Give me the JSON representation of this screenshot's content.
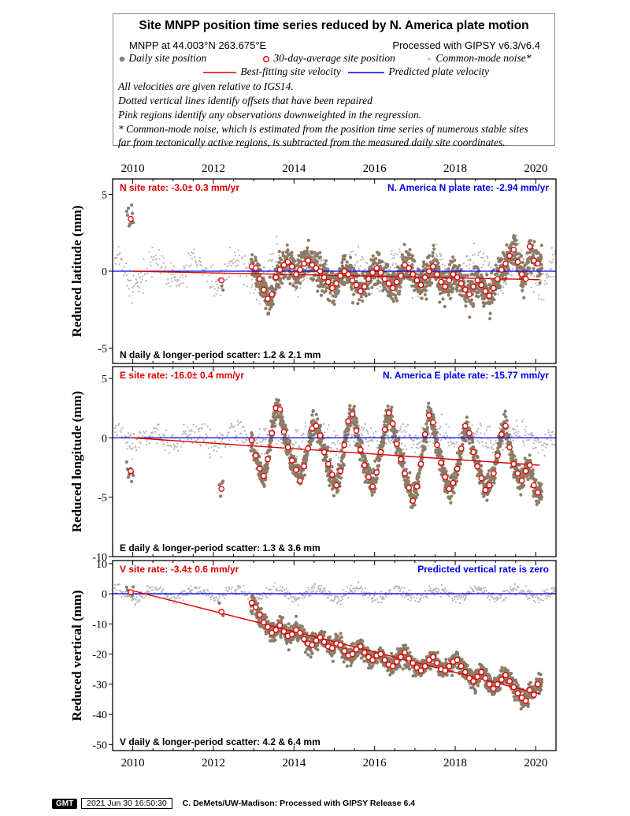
{
  "header": {
    "title": "Site MNPP position time series reduced by N. America plate motion",
    "site_location": "MNPP at 44.003°N 263.675°E",
    "processing": "Processed with GIPSY v6.3/v6.4",
    "legend": {
      "daily": "Daily site position",
      "avg30": "30-day-average site position",
      "common_mode": "Common-mode noise*",
      "best_fit": "Best-fitting site velocity",
      "predicted": "Predicted plate velocity"
    },
    "notes": [
      "All velocities are given relative to IGS14.",
      "Dotted vertical lines identify offsets that have been repaired",
      "Pink regions identify any observations downweighted in the regression.",
      "* Common-mode noise, which is estimated from the position time series of numerous stable sites",
      "far from tectonically active regions, is subtracted from the measured daily site coordinates."
    ]
  },
  "colors": {
    "daily": "#8c7b67",
    "common_mode": "#b4b4b4",
    "avg30_stroke": "#e00000",
    "best_fit": "#e00000",
    "predicted": "#0000ee",
    "site_rate_text": "#e00000",
    "plate_rate_text": "#0000ee"
  },
  "chart_data": [
    {
      "type": "scatter",
      "component": "N",
      "ylabel": "Reduced latitude (mm)",
      "xlim": [
        2009.5,
        2020.5
      ],
      "ylim": [
        -6,
        6
      ],
      "yticks": [
        5,
        0,
        -5
      ],
      "xticks": [
        2010,
        2012,
        2014,
        2016,
        2018,
        2020
      ],
      "site_rate": "N site rate:  -3.0± 0.3 mm/yr",
      "plate_rate": "N. America N plate rate: -2.94 mm/yr",
      "scatter": "N daily & longer-period scatter:   1.2 &   2.1 mm",
      "best_fit_line": {
        "x": [
          2010.0,
          2020.1
        ],
        "y": [
          0.0,
          -0.55
        ]
      },
      "predicted_line": {
        "x": [
          2009.5,
          2020.5
        ],
        "y": [
          0.0,
          0.0
        ]
      },
      "averages_30day": {
        "x": [
          2009.95,
          2012.2,
          2012.95,
          2013.05,
          2013.15,
          2013.25,
          2013.35,
          2013.45,
          2013.55,
          2013.65,
          2013.75,
          2013.85,
          2013.95,
          2014.05,
          2014.15,
          2014.25,
          2014.35,
          2014.45,
          2014.55,
          2014.65,
          2014.75,
          2014.85,
          2014.95,
          2015.05,
          2015.15,
          2015.25,
          2015.35,
          2015.45,
          2015.55,
          2015.65,
          2015.75,
          2015.85,
          2015.95,
          2016.05,
          2016.15,
          2016.25,
          2016.35,
          2016.45,
          2016.55,
          2016.65,
          2016.75,
          2016.85,
          2016.95,
          2017.05,
          2017.15,
          2017.25,
          2017.35,
          2017.45,
          2017.55,
          2017.65,
          2017.75,
          2017.85,
          2017.95,
          2018.05,
          2018.15,
          2018.25,
          2018.35,
          2018.45,
          2018.55,
          2018.65,
          2018.75,
          2018.85,
          2018.95,
          2019.05,
          2019.15,
          2019.25,
          2019.35,
          2019.45,
          2019.55,
          2019.65,
          2019.75,
          2019.85,
          2019.95,
          2020.05
        ],
        "y": [
          3.4,
          -0.6,
          0.3,
          0.2,
          -0.5,
          -1.2,
          -1.8,
          -1.5,
          -0.4,
          0.1,
          0.4,
          0.6,
          0.3,
          -0.2,
          0.1,
          0.5,
          0.7,
          0.4,
          0.2,
          0.0,
          -0.4,
          -0.7,
          -1.1,
          -0.8,
          -0.3,
          0.0,
          -0.2,
          -0.6,
          -0.9,
          -1.3,
          -1.0,
          -0.5,
          -0.1,
          0.2,
          -0.1,
          -0.5,
          -0.8,
          -1.1,
          -0.7,
          -0.3,
          0.4,
          0.2,
          -0.2,
          -0.6,
          -0.9,
          -0.4,
          0.0,
          0.3,
          -0.2,
          -0.7,
          -1.0,
          -0.6,
          -0.2,
          -0.4,
          -0.8,
          -1.2,
          -1.5,
          -1.0,
          -0.6,
          -0.9,
          -1.3,
          -1.6,
          -1.1,
          -0.5,
          0.1,
          0.5,
          1.0,
          1.4,
          0.6,
          -0.2,
          -0.5,
          1.6,
          0.7,
          0.5
        ]
      }
    },
    {
      "type": "scatter",
      "component": "E",
      "ylabel": "Reduced longitude (mm)",
      "xlim": [
        2009.5,
        2020.5
      ],
      "ylim": [
        -10,
        6
      ],
      "yticks": [
        5,
        0,
        -5,
        -10
      ],
      "xticks": [
        2010,
        2012,
        2014,
        2016,
        2018,
        2020
      ],
      "site_rate": "E site rate:  -16.0± 0.4 mm/yr",
      "plate_rate": "N. America E plate rate: -15.77 mm/yr",
      "scatter": "E daily & longer-period scatter:   1.3 &   3.6 mm",
      "best_fit_line": {
        "x": [
          2010.0,
          2020.1
        ],
        "y": [
          0.0,
          -2.3
        ]
      },
      "predicted_line": {
        "x": [
          2009.5,
          2020.5
        ],
        "y": [
          0.0,
          0.0
        ]
      },
      "averages_30day": {
        "x": [
          2009.95,
          2012.2,
          2012.95,
          2013.05,
          2013.15,
          2013.25,
          2013.35,
          2013.45,
          2013.55,
          2013.65,
          2013.75,
          2013.85,
          2013.95,
          2014.05,
          2014.15,
          2014.25,
          2014.35,
          2014.45,
          2014.55,
          2014.65,
          2014.75,
          2014.85,
          2014.95,
          2015.05,
          2015.15,
          2015.25,
          2015.35,
          2015.45,
          2015.55,
          2015.65,
          2015.75,
          2015.85,
          2015.95,
          2016.05,
          2016.15,
          2016.25,
          2016.35,
          2016.45,
          2016.55,
          2016.65,
          2016.75,
          2016.85,
          2016.95,
          2017.05,
          2017.15,
          2017.25,
          2017.35,
          2017.45,
          2017.55,
          2017.65,
          2017.75,
          2017.85,
          2017.95,
          2018.05,
          2018.15,
          2018.25,
          2018.35,
          2018.45,
          2018.55,
          2018.65,
          2018.75,
          2018.85,
          2018.95,
          2019.05,
          2019.15,
          2019.25,
          2019.35,
          2019.45,
          2019.55,
          2019.65,
          2019.75,
          2019.85,
          2019.95,
          2020.05
        ],
        "y": [
          -2.8,
          -4.3,
          -0.2,
          -1.5,
          -2.6,
          -3.2,
          -1.8,
          0.4,
          2.5,
          2.4,
          0.5,
          -0.8,
          -1.9,
          -2.7,
          -3.6,
          -2.4,
          -0.9,
          0.8,
          1.0,
          0.2,
          -1.2,
          -2.2,
          -3.1,
          -4.0,
          -2.8,
          -0.6,
          1.4,
          2.0,
          0.6,
          -1.0,
          -2.3,
          -3.3,
          -4.1,
          -2.9,
          -1.2,
          0.7,
          2.1,
          1.2,
          -0.5,
          -1.8,
          -3.0,
          -4.2,
          -5.3,
          -4.1,
          -2.2,
          0.3,
          1.9,
          1.3,
          -0.6,
          -2.1,
          -3.3,
          -4.3,
          -3.8,
          -2.6,
          -0.9,
          1.0,
          0.4,
          -1.2,
          -2.4,
          -3.4,
          -4.4,
          -4.0,
          -3.0,
          -1.5,
          0.3,
          1.0,
          -0.8,
          -2.2,
          -3.0,
          -3.6,
          -2.8,
          -2.3,
          -4.0,
          -4.6
        ]
      }
    },
    {
      "type": "scatter",
      "component": "V",
      "ylabel": "Reduced vertical (mm)",
      "xlim": [
        2009.5,
        2020.5
      ],
      "ylim": [
        -52,
        11
      ],
      "yticks": [
        10,
        0,
        -10,
        -20,
        -30,
        -40,
        -50
      ],
      "xticks": [
        2010,
        2012,
        2014,
        2016,
        2018,
        2020
      ],
      "site_rate": "V site rate:  -3.4± 0.6 mm/yr",
      "plate_rate": "Predicted vertical rate is zero",
      "scatter": "V daily & longer-period scatter:   4.2 &   6.4 mm",
      "best_fit_line": {
        "x": [
          2010.0,
          2020.1
        ],
        "y": [
          1.0,
          -33.2
        ]
      },
      "predicted_line": {
        "x": [
          2009.5,
          2020.5
        ],
        "y": [
          0.0,
          0.0
        ]
      },
      "averages_30day": {
        "x": [
          2009.95,
          2012.2,
          2012.95,
          2013.05,
          2013.15,
          2013.25,
          2013.35,
          2013.45,
          2013.55,
          2013.65,
          2013.75,
          2013.85,
          2013.95,
          2014.05,
          2014.15,
          2014.25,
          2014.35,
          2014.45,
          2014.55,
          2014.65,
          2014.75,
          2014.85,
          2014.95,
          2015.05,
          2015.15,
          2015.25,
          2015.35,
          2015.45,
          2015.55,
          2015.65,
          2015.75,
          2015.85,
          2015.95,
          2016.05,
          2016.15,
          2016.25,
          2016.35,
          2016.45,
          2016.55,
          2016.65,
          2016.75,
          2016.85,
          2016.95,
          2017.05,
          2017.15,
          2017.25,
          2017.35,
          2017.45,
          2017.55,
          2017.65,
          2017.75,
          2017.85,
          2017.95,
          2018.05,
          2018.15,
          2018.25,
          2018.35,
          2018.45,
          2018.55,
          2018.65,
          2018.75,
          2018.85,
          2018.95,
          2019.05,
          2019.15,
          2019.25,
          2019.35,
          2019.45,
          2019.55,
          2019.65,
          2019.75,
          2019.85,
          2019.95,
          2020.05
        ],
        "y": [
          0.5,
          -6.0,
          -3.0,
          -4.5,
          -7.0,
          -9.5,
          -11.0,
          -13.0,
          -12.0,
          -10.5,
          -12.5,
          -14.0,
          -13.5,
          -12.0,
          -13.0,
          -15.0,
          -16.5,
          -17.0,
          -15.5,
          -14.5,
          -16.0,
          -17.5,
          -18.0,
          -16.5,
          -17.0,
          -19.0,
          -20.5,
          -20.0,
          -18.5,
          -17.5,
          -19.5,
          -21.0,
          -22.0,
          -20.5,
          -20.0,
          -22.0,
          -23.5,
          -24.0,
          -22.5,
          -21.0,
          -19.5,
          -21.5,
          -23.0,
          -24.5,
          -25.5,
          -24.0,
          -22.0,
          -21.0,
          -23.0,
          -25.0,
          -25.5,
          -24.0,
          -22.5,
          -22.0,
          -24.0,
          -26.0,
          -28.0,
          -29.0,
          -27.5,
          -26.0,
          -28.0,
          -30.0,
          -31.5,
          -30.0,
          -28.5,
          -27.0,
          -29.0,
          -31.0,
          -33.0,
          -34.5,
          -35.5,
          -32.0,
          -33.5,
          -30.0
        ]
      }
    }
  ]
}
